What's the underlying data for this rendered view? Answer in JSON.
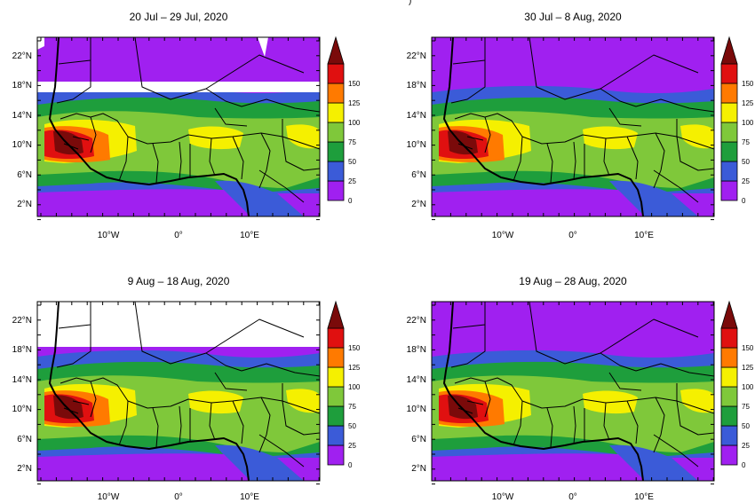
{
  "figure": {
    "header_fragment": ")",
    "color_bar": {
      "ticks": [
        "0",
        "25",
        "50",
        "75",
        "100",
        "125",
        "150"
      ],
      "colors": [
        "#a020f0",
        "#3b5bd8",
        "#1e9e3c",
        "#7fc83a",
        "#f5f000",
        "#ff7a00",
        "#e01010",
        "#7a0a0a"
      ]
    },
    "axes": {
      "lat_labels": [
        "22°N",
        "18°N",
        "14°N",
        "10°N",
        "6°N",
        "2°N"
      ],
      "lon_labels": [
        "10°W",
        "0°",
        "10°E"
      ]
    },
    "panels": [
      {
        "title": "20 Jul – 29 Jul, 2020"
      },
      {
        "title": "30 Jul – 8 Aug, 2020"
      },
      {
        "title": "9 Aug – 18 Aug, 2020"
      },
      {
        "title": "19 Aug – 28 Aug, 2020"
      }
    ]
  }
}
